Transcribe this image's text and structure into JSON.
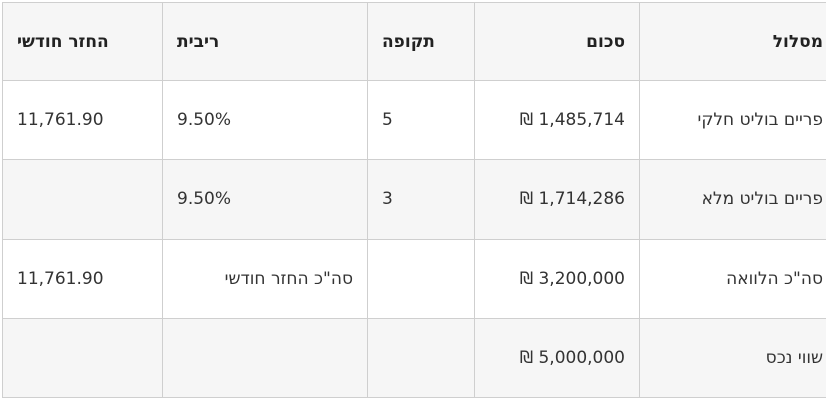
{
  "header": {
    "route": "מסלול",
    "amount": "סכום",
    "period": "תקופה",
    "rate": "ריבית",
    "monthly": "החזר חודשי"
  },
  "rows": [
    {
      "route": "פריים בוליט חלקי",
      "amount": "₪ 1,485,714",
      "period": "5",
      "rate": "9.50%",
      "monthly": "11,761.90"
    },
    {
      "route": "פריים בוליט מלא",
      "amount": "₪ 1,714,286",
      "period": "3",
      "rate": "9.50%",
      "monthly": ""
    },
    {
      "route": "סה\"כ הלוואה",
      "amount": "₪ 3,200,000",
      "period": "",
      "rate": "סה\"כ החזר חודשי",
      "monthly": "11,761.90"
    },
    {
      "route": "שווי נכס",
      "amount": "₪ 5,000,000",
      "period": "",
      "rate": "",
      "monthly": ""
    }
  ]
}
